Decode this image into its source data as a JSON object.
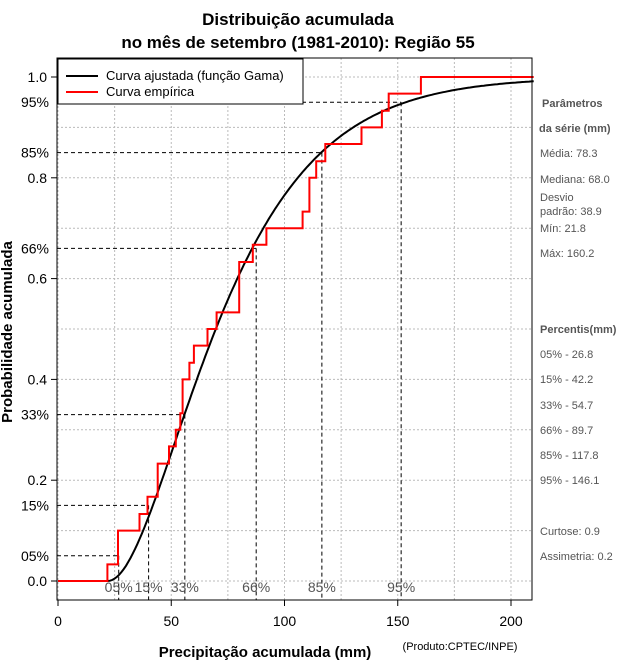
{
  "chart_data": {
    "type": "line",
    "title_line1": "Distribuição acumulada",
    "title_line2": "no mês de setembro (1981-2010): Região 55",
    "xlabel": "Precipitação acumulada (mm)",
    "xlabel_note": "(Produto:CPTEC/INPE)",
    "ylabel": "Probabilidade acumulada",
    "xlim": [
      0,
      210
    ],
    "ylim": [
      0,
      1
    ],
    "x_ticks": [
      "0",
      "50",
      "100",
      "150",
      "200"
    ],
    "y_ticks": [
      "0.0",
      "0.2",
      "0.4",
      "0.6",
      "0.8",
      "1.0"
    ],
    "legend": {
      "position": "top-left",
      "entries": [
        {
          "label": "Curva ajustada (função Gama)",
          "color": "#000000"
        },
        {
          "label": "Curva empírica",
          "color": "#ff0000"
        }
      ]
    },
    "series": [
      {
        "name": "Curva ajustada (função Gama)",
        "color": "#000000",
        "gamma_fit": {
          "mean": 78.3,
          "sd": 38.9,
          "shift": 21.8
        }
      },
      {
        "name": "Curva empírica",
        "color": "#ff0000",
        "steps": [
          [
            0,
            0
          ],
          [
            21.8,
            0.0
          ],
          [
            21.8,
            0.033
          ],
          [
            26.5,
            0.033
          ],
          [
            26.5,
            0.1
          ],
          [
            36,
            0.1
          ],
          [
            36,
            0.133
          ],
          [
            39.5,
            0.133
          ],
          [
            39.5,
            0.167
          ],
          [
            44,
            0.167
          ],
          [
            44,
            0.233
          ],
          [
            49,
            0.233
          ],
          [
            49,
            0.267
          ],
          [
            52,
            0.267
          ],
          [
            52,
            0.3
          ],
          [
            54,
            0.3
          ],
          [
            54,
            0.333
          ],
          [
            55,
            0.333
          ],
          [
            55,
            0.4
          ],
          [
            58,
            0.4
          ],
          [
            58,
            0.433
          ],
          [
            60,
            0.433
          ],
          [
            60,
            0.467
          ],
          [
            66,
            0.467
          ],
          [
            66,
            0.5
          ],
          [
            70,
            0.5
          ],
          [
            70,
            0.533
          ],
          [
            80,
            0.533
          ],
          [
            80,
            0.633
          ],
          [
            86,
            0.633
          ],
          [
            86,
            0.667
          ],
          [
            92,
            0.667
          ],
          [
            92,
            0.7
          ],
          [
            108,
            0.7
          ],
          [
            108,
            0.733
          ],
          [
            111,
            0.733
          ],
          [
            111,
            0.8
          ],
          [
            114,
            0.8
          ],
          [
            114,
            0.833
          ],
          [
            118,
            0.833
          ],
          [
            118,
            0.867
          ],
          [
            134,
            0.867
          ],
          [
            134,
            0.9
          ],
          [
            143,
            0.9
          ],
          [
            143,
            0.933
          ],
          [
            146,
            0.933
          ],
          [
            146,
            0.967
          ],
          [
            160.2,
            0.967
          ],
          [
            160.2,
            1.0
          ],
          [
            210,
            1.0
          ]
        ]
      }
    ],
    "percentile_guides": [
      {
        "label": "05%",
        "x": 26.8,
        "p": 0.05
      },
      {
        "label": "15%",
        "x": 40.0,
        "p": 0.15
      },
      {
        "label": "33%",
        "x": 56.0,
        "p": 0.33
      },
      {
        "label": "66%",
        "x": 87.5,
        "p": 0.66
      },
      {
        "label": "85%",
        "x": 116.5,
        "p": 0.85
      },
      {
        "label": "95%",
        "x": 151.5,
        "p": 0.95
      }
    ]
  },
  "side_panel": {
    "parametros_title_1": "Parâmetros",
    "parametros_title_2": "da série (mm)",
    "media": "Média: 78.3",
    "mediana": "Mediana: 68.0",
    "desvio_1": "Desvio",
    "desvio_2": "padrão: 38.9",
    "min": "Mín: 21.8",
    "max": "Máx: 160.2",
    "percentis_title": "Percentis(mm)",
    "p05": "05% - 26.8",
    "p15": "15% - 42.2",
    "p33": "33% - 54.7",
    "p66": "66% - 89.7",
    "p85": "85% - 117.8",
    "p95": "95% - 146.1",
    "curtose": "Curtose: 0.9",
    "assimetria": "Assimetria: 0.2"
  }
}
